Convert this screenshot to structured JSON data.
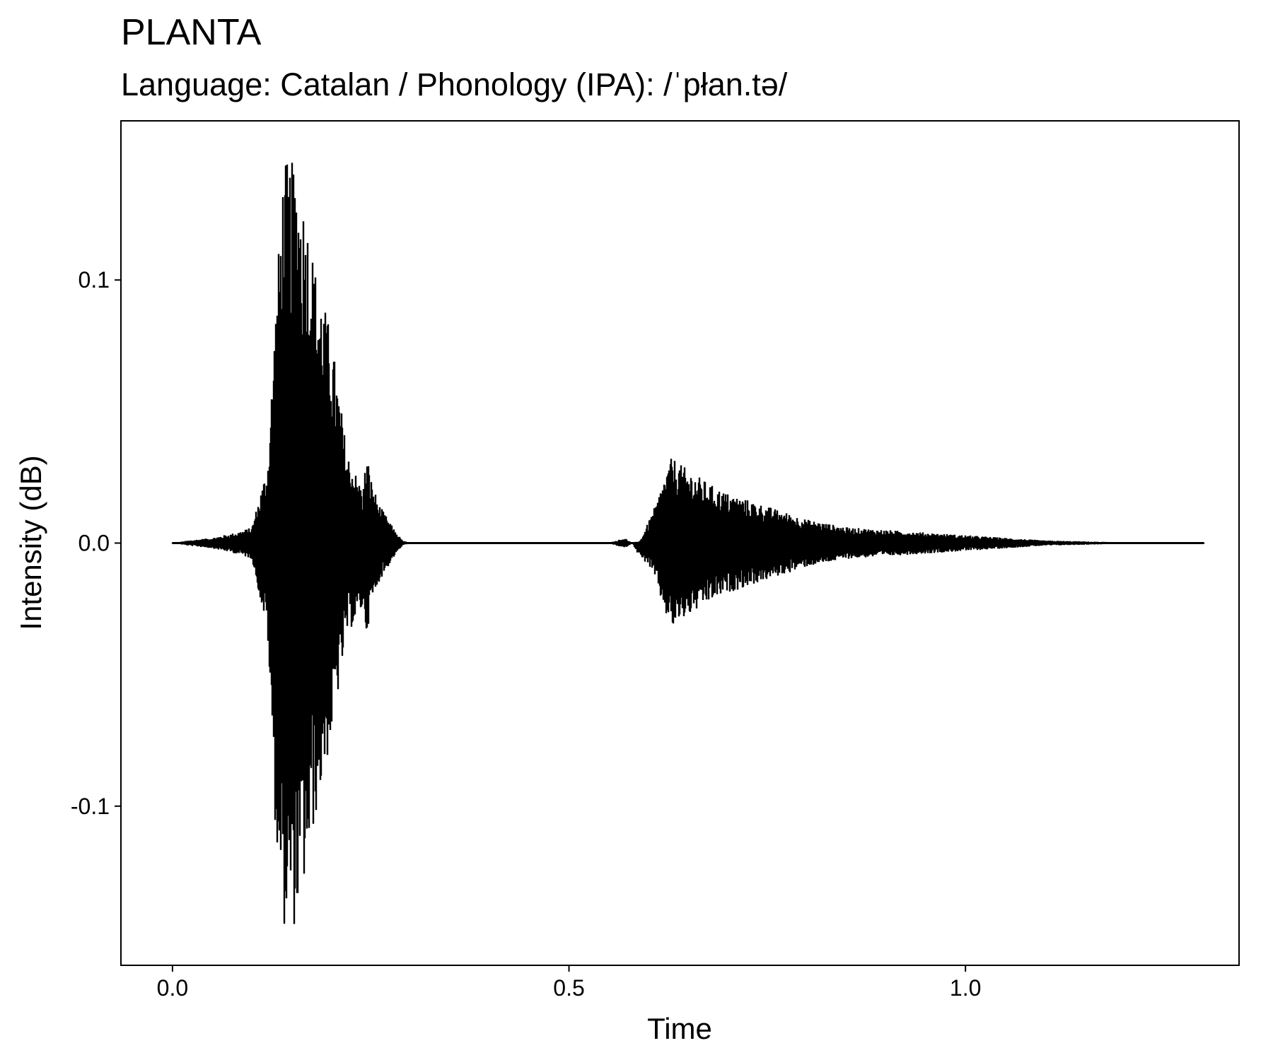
{
  "chart_data": {
    "type": "line",
    "title": "PLANTA",
    "subtitle": "Language: Catalan / Phonology (IPA): /ˈpłan.tə/",
    "xlabel": "Time",
    "ylabel": "Intensity (dB)",
    "xlim": [
      -0.065,
      1.345
    ],
    "ylim": [
      -0.1605,
      0.1605
    ],
    "x_ticks": [
      {
        "value": 0.0,
        "label": "0.0"
      },
      {
        "value": 0.5,
        "label": "0.5"
      },
      {
        "value": 1.0,
        "label": "1.0"
      }
    ],
    "y_ticks": [
      {
        "value": 0.1,
        "label": "0.1"
      },
      {
        "value": 0.0,
        "label": "0.0"
      },
      {
        "value": -0.1,
        "label": "-0.1"
      }
    ],
    "grid": false,
    "legend": "none",
    "line_color": "#000000",
    "duration": 1.3,
    "envelope": {
      "description_of_series": "waveform amplitude envelope (max / min) at time points",
      "x": [
        0.0,
        0.02,
        0.05,
        0.08,
        0.1,
        0.12,
        0.13,
        0.14,
        0.155,
        0.17,
        0.18,
        0.2,
        0.22,
        0.24,
        0.245,
        0.25,
        0.26,
        0.28,
        0.29,
        0.3,
        0.35,
        0.45,
        0.55,
        0.57,
        0.58,
        0.59,
        0.6,
        0.61,
        0.62,
        0.63,
        0.64,
        0.66,
        0.68,
        0.7,
        0.75,
        0.8,
        0.85,
        0.9,
        0.95,
        1.0,
        1.05,
        1.1,
        1.2,
        1.3
      ],
      "max": [
        0.0,
        0.001,
        0.002,
        0.004,
        0.006,
        0.03,
        0.09,
        0.145,
        0.145,
        0.125,
        0.105,
        0.08,
        0.035,
        0.02,
        0.035,
        0.025,
        0.015,
        0.005,
        0.001,
        0.0,
        0.0,
        0.0,
        0.0,
        0.002,
        0.0,
        0.001,
        0.008,
        0.015,
        0.025,
        0.033,
        0.03,
        0.026,
        0.022,
        0.019,
        0.014,
        0.009,
        0.006,
        0.005,
        0.004,
        0.003,
        0.002,
        0.001,
        0.0003,
        0.0
      ],
      "min": [
        0.0,
        -0.001,
        -0.002,
        -0.004,
        -0.006,
        -0.035,
        -0.11,
        -0.146,
        -0.146,
        -0.125,
        -0.105,
        -0.075,
        -0.035,
        -0.025,
        -0.035,
        -0.025,
        -0.015,
        -0.005,
        -0.001,
        0.0,
        0.0,
        0.0,
        0.0,
        -0.002,
        0.0,
        -0.006,
        -0.008,
        -0.015,
        -0.026,
        -0.033,
        -0.03,
        -0.026,
        -0.022,
        -0.019,
        -0.014,
        -0.009,
        -0.006,
        -0.005,
        -0.004,
        -0.003,
        -0.002,
        -0.001,
        -0.0003,
        0.0
      ]
    }
  }
}
